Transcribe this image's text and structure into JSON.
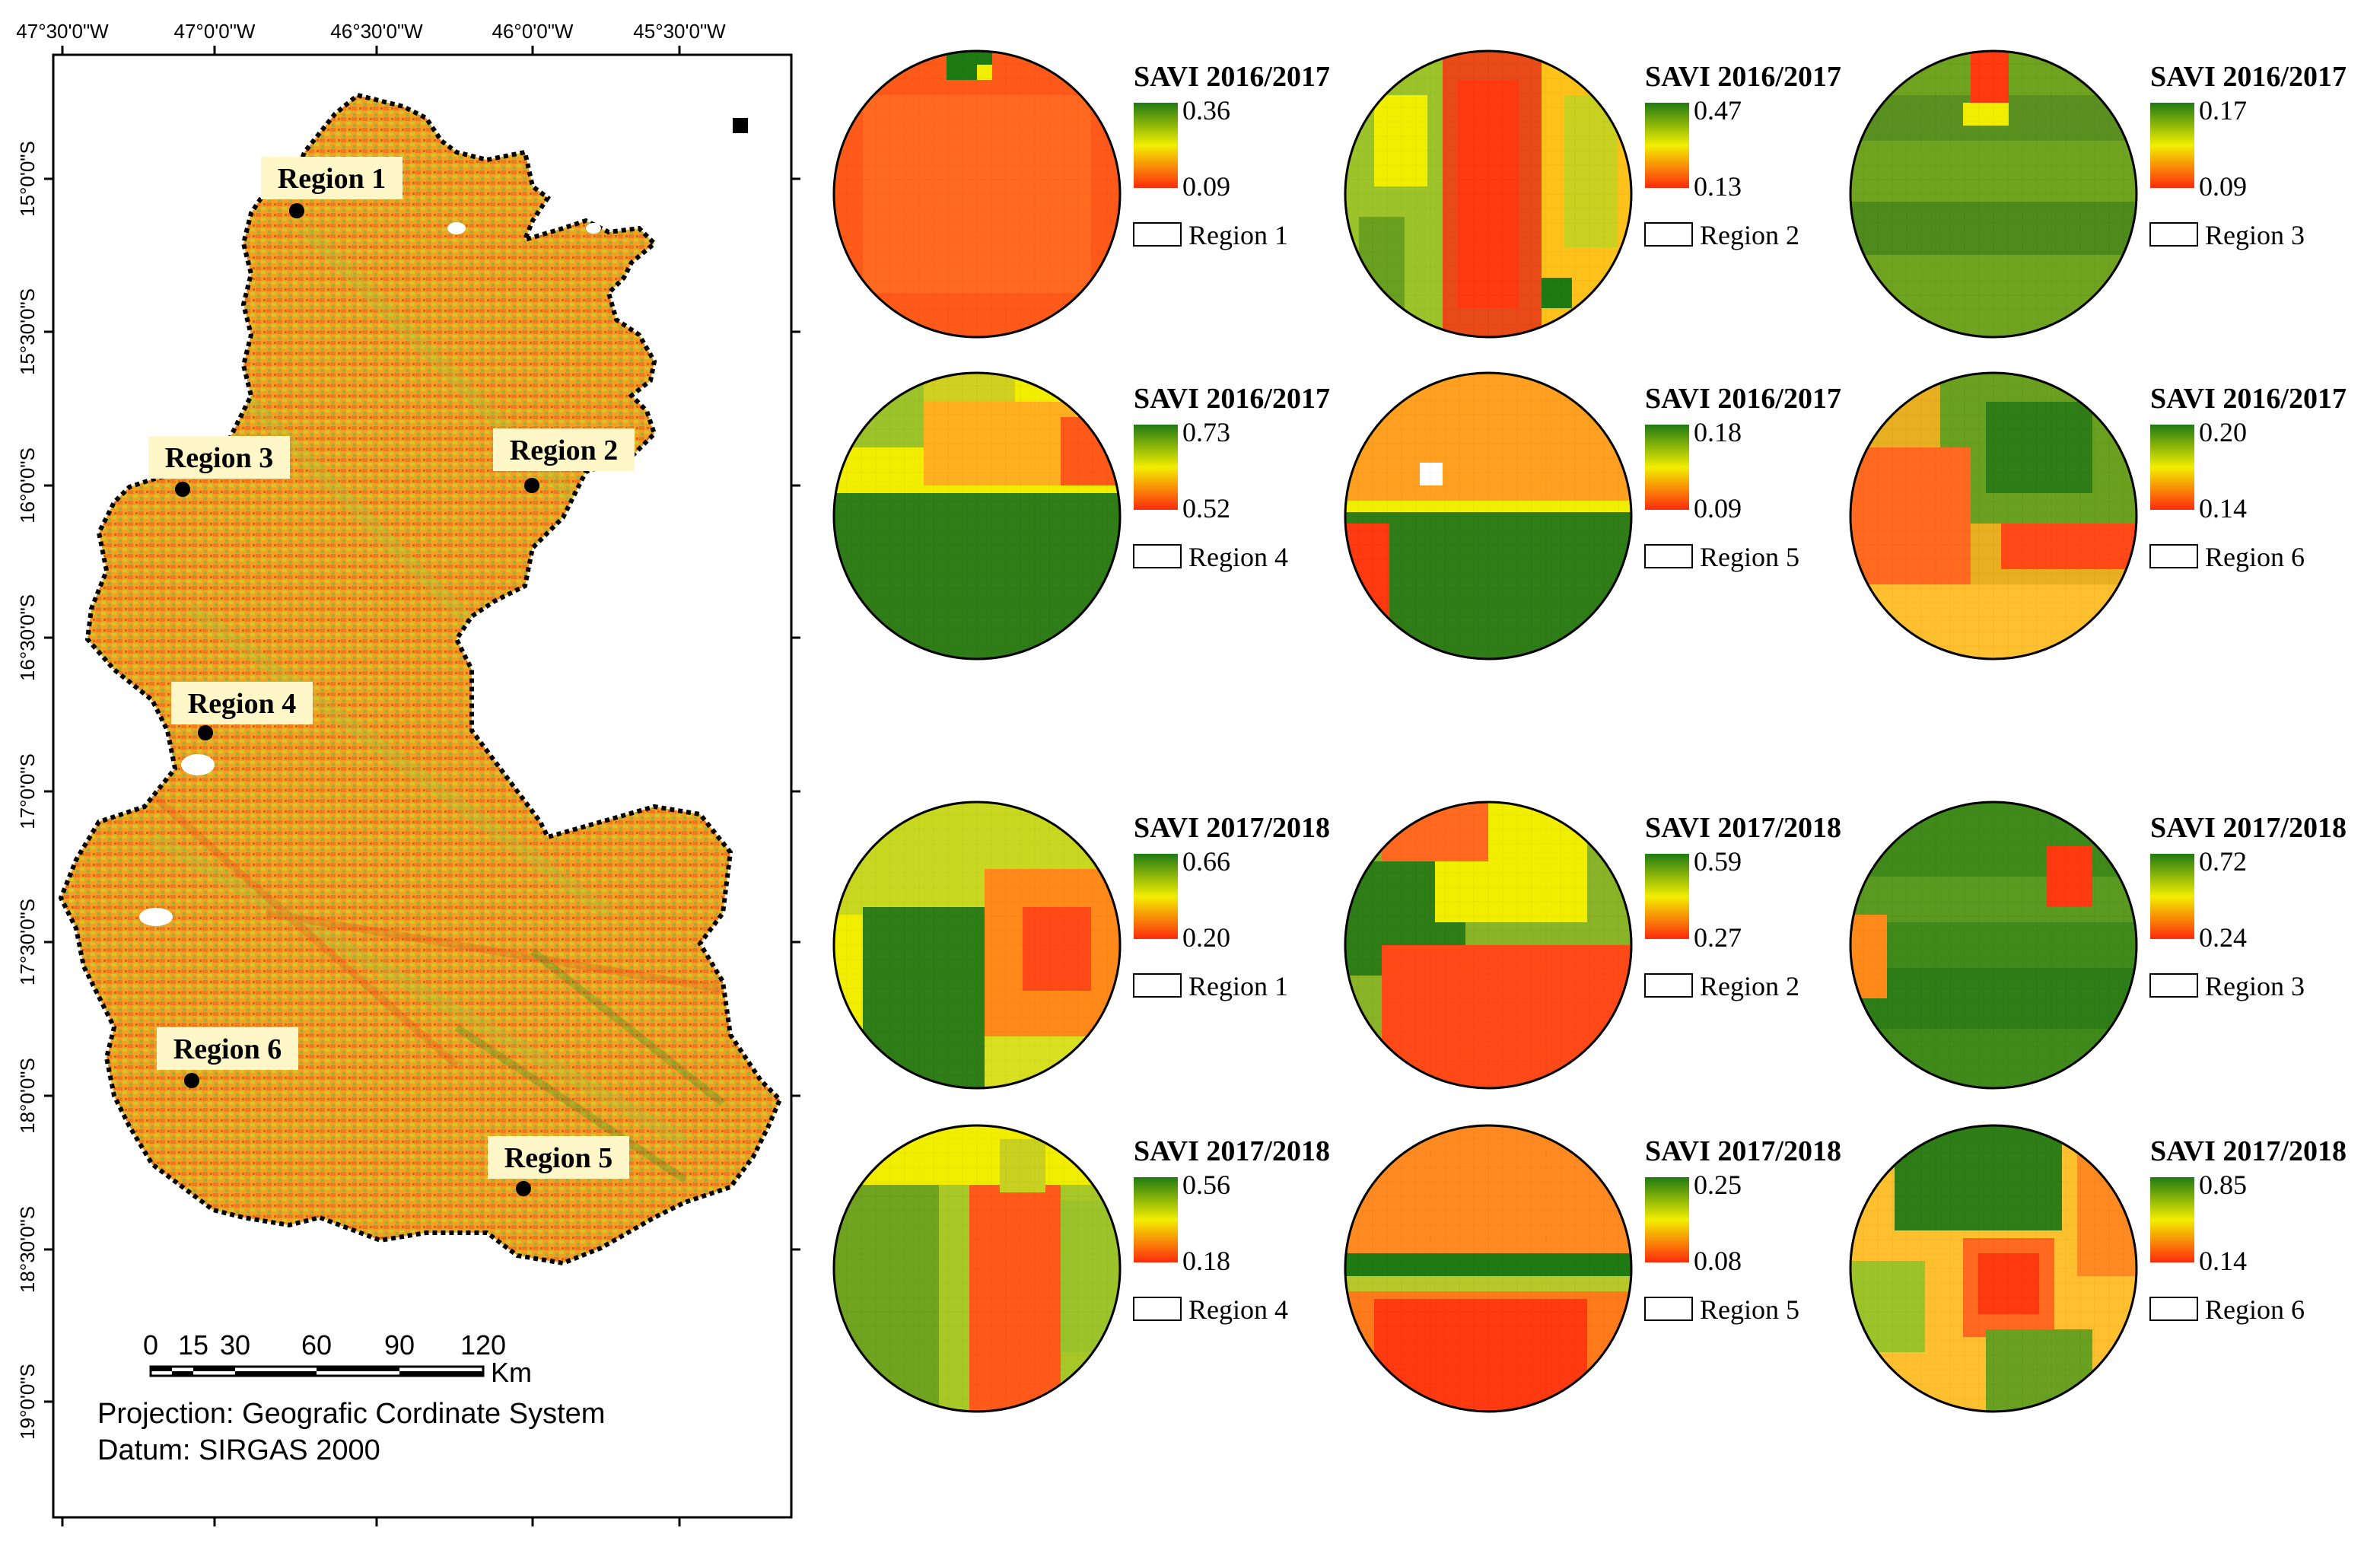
{
  "map": {
    "lon_labels": [
      "47°30'0\"W",
      "47°0'0\"W",
      "46°30'0\"W",
      "46°0'0\"W",
      "45°30'0\"W"
    ],
    "lat_labels": [
      "15°0'0\"S",
      "15°30'0\"S",
      "16°0'0\"S",
      "16°30'0\"S",
      "17°0'0\"S",
      "17°30'0\"S",
      "18°0'0\"S",
      "18°30'0\"S",
      "19°0'0\"S"
    ],
    "regions": [
      {
        "label": "Region 1"
      },
      {
        "label": "Region 2"
      },
      {
        "label": "Region 3"
      },
      {
        "label": "Region 4"
      },
      {
        "label": "Region 5"
      },
      {
        "label": "Region 6"
      }
    ],
    "scale": {
      "ticks": [
        "0",
        "15",
        "30",
        "60",
        "90",
        "120"
      ],
      "unit": "Km"
    },
    "projection_text": "Projection: Geografic Cordinate System",
    "datum_text": "Datum: SIRGAS 2000"
  },
  "panels": [
    {
      "title": "SAVI 2016/2017",
      "max": "0.36",
      "min": "0.09",
      "region": "Region 1",
      "scene": "r1a"
    },
    {
      "title": "SAVI 2016/2017",
      "max": "0.47",
      "min": "0.13",
      "region": "Region 2",
      "scene": "r2a"
    },
    {
      "title": "SAVI 2016/2017",
      "max": "0.17",
      "min": "0.09",
      "region": "Region 3",
      "scene": "r3a"
    },
    {
      "title": "SAVI 2016/2017",
      "max": "0.73",
      "min": "0.52",
      "region": "Region 4",
      "scene": "r4a"
    },
    {
      "title": "SAVI 2016/2017",
      "max": "0.18",
      "min": "0.09",
      "region": "Region 5",
      "scene": "r5a"
    },
    {
      "title": "SAVI 2016/2017",
      "max": "0.20",
      "min": "0.14",
      "region": "Region 6",
      "scene": "r6a"
    },
    {
      "title": "SAVI 2017/2018",
      "max": "0.66",
      "min": "0.20",
      "region": "Region 1",
      "scene": "r1b"
    },
    {
      "title": "SAVI 2017/2018",
      "max": "0.59",
      "min": "0.27",
      "region": "Region 2",
      "scene": "r2b"
    },
    {
      "title": "SAVI 2017/2018",
      "max": "0.72",
      "min": "0.24",
      "region": "Region 3",
      "scene": "r3b"
    },
    {
      "title": "SAVI 2017/2018",
      "max": "0.56",
      "min": "0.18",
      "region": "Region 4",
      "scene": "r4b"
    },
    {
      "title": "SAVI 2017/2018",
      "max": "0.25",
      "min": "0.08",
      "region": "Region 5",
      "scene": "r5b"
    },
    {
      "title": "SAVI 2017/2018",
      "max": "0.85",
      "min": "0.14",
      "region": "Region 6",
      "scene": "r6b"
    }
  ],
  "colors": {
    "high": "#1a7a12",
    "mid": "#f5f200",
    "low": "#ff2a10",
    "map_fill": "#f0a020",
    "label_bg": "#fff7c8"
  }
}
